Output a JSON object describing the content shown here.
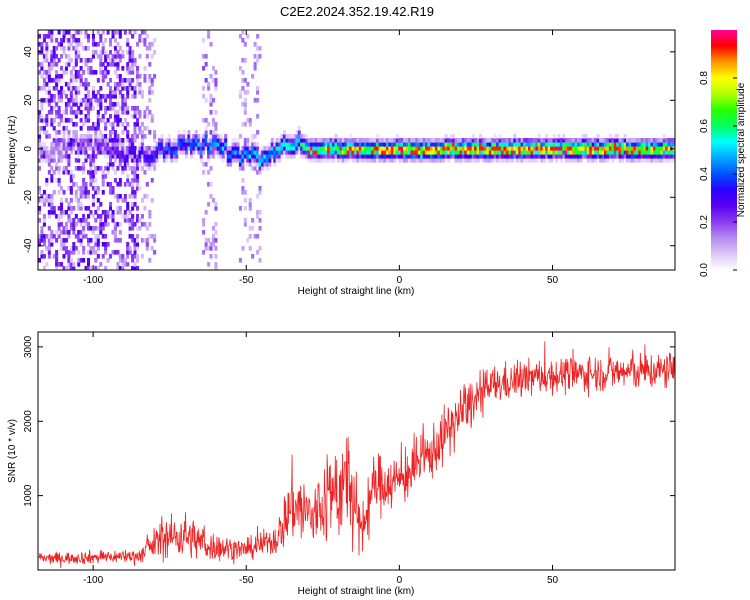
{
  "page": {
    "title": "C2E2.2024.352.19.42.R19"
  },
  "chart_data": [
    {
      "type": "heatmap",
      "xlabel": "Height of straight line (km)",
      "ylabel": "Frequency (Hz)",
      "xlim": [
        -118,
        90
      ],
      "ylim": [
        -50,
        49
      ],
      "xticks": [
        -100,
        -50,
        0,
        50
      ],
      "yticks": [
        -40,
        -20,
        0,
        20,
        40
      ],
      "colorbar": {
        "label": "Normalized spectral amplitude",
        "range": [
          0,
          1
        ],
        "ticks": [
          "0.0",
          "0.2",
          "0.4",
          "0.6",
          "0.8"
        ],
        "colormap": [
          "#ffffff",
          "#dcc6f5",
          "#b48cf0",
          "#8a3cf2",
          "#5a00f0",
          "#2a00ff",
          "#0050ff",
          "#00a8ff",
          "#00ffff",
          "#00ff60",
          "#28ff00",
          "#b0ff00",
          "#ffff00",
          "#ff9600",
          "#ff0000",
          "#ff0096"
        ]
      },
      "ridge": {
        "frequency_hz": 0,
        "width_hz": 5,
        "amplitude_profile": [
          {
            "x": -118,
            "amp": 0.15
          },
          {
            "x": -95,
            "amp": 0.25
          },
          {
            "x": -85,
            "amp": 0.35
          },
          {
            "x": -70,
            "amp": 0.45
          },
          {
            "x": -40,
            "amp": 0.55
          },
          {
            "x": -20,
            "amp": 0.75
          },
          {
            "x": 0,
            "amp": 0.9
          },
          {
            "x": 50,
            "amp": 0.9
          },
          {
            "x": 90,
            "amp": 0.85
          }
        ]
      },
      "noise_regions": [
        {
          "x_from": -118,
          "x_to": -85,
          "level": 0.2
        },
        {
          "x_from": -85,
          "x_to": -80,
          "level": 0.1
        },
        {
          "x_from": -64,
          "x_to": -60,
          "level": 0.1
        },
        {
          "x_from": -52,
          "x_to": -45,
          "level": 0.07
        }
      ]
    },
    {
      "type": "line",
      "xlabel": "Height of straight line (km)",
      "ylabel": "SNR (10 * v/v)",
      "xlim": [
        -118,
        90
      ],
      "ylim": [
        0,
        3200
      ],
      "xticks": [
        -100,
        -50,
        0,
        50
      ],
      "yticks": [
        1000,
        2000,
        3000
      ],
      "series_color": "#ee2222",
      "envelope": [
        {
          "x": -118,
          "y": 150,
          "noise": 70
        },
        {
          "x": -85,
          "y": 190,
          "noise": 90
        },
        {
          "x": -78,
          "y": 420,
          "noise": 230
        },
        {
          "x": -70,
          "y": 470,
          "noise": 280
        },
        {
          "x": -62,
          "y": 320,
          "noise": 190
        },
        {
          "x": -50,
          "y": 270,
          "noise": 120
        },
        {
          "x": -40,
          "y": 420,
          "noise": 200
        },
        {
          "x": -35,
          "y": 900,
          "noise": 480
        },
        {
          "x": -28,
          "y": 700,
          "noise": 450
        },
        {
          "x": -22,
          "y": 1050,
          "noise": 600
        },
        {
          "x": -16,
          "y": 1150,
          "noise": 700
        },
        {
          "x": -13,
          "y": 450,
          "noise": 400
        },
        {
          "x": -8,
          "y": 1150,
          "noise": 380
        },
        {
          "x": 0,
          "y": 1200,
          "noise": 330
        },
        {
          "x": 10,
          "y": 1550,
          "noise": 330
        },
        {
          "x": 20,
          "y": 2100,
          "noise": 330
        },
        {
          "x": 30,
          "y": 2480,
          "noise": 240
        },
        {
          "x": 45,
          "y": 2600,
          "noise": 220
        },
        {
          "x": 65,
          "y": 2650,
          "noise": 220
        },
        {
          "x": 90,
          "y": 2680,
          "noise": 240
        }
      ]
    }
  ]
}
